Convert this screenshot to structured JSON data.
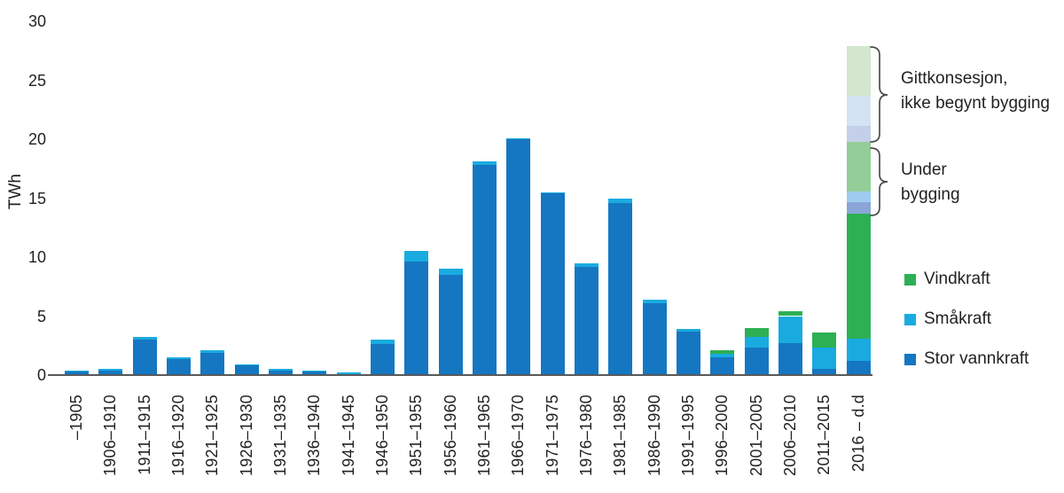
{
  "chart_data": {
    "type": "bar",
    "stacked": true,
    "ylabel": "TWh",
    "ylim": [
      0,
      30
    ],
    "yticks": [
      0,
      5,
      10,
      15,
      20,
      25,
      30
    ],
    "grid": false,
    "legend_position": "right",
    "categories": [
      "–1905",
      "1906–1910",
      "1911–1915",
      "1916–1920",
      "1921–1925",
      "1926–1930",
      "1931–1935",
      "1936–1940",
      "1941–1945",
      "1946–1950",
      "1951–1955",
      "1956–1960",
      "1961–1965",
      "1966–1970",
      "1971–1975",
      "1976–1980",
      "1981–1985",
      "1986–1990",
      "1991–1995",
      "1996–2000",
      "2001–2005",
      "2006–2010",
      "2011–2015",
      "2016 – d.d"
    ],
    "series": [
      {
        "name": "Stor vannkraft",
        "key": "stor",
        "color": "#1577c1",
        "values": [
          0.3,
          0.4,
          3.0,
          1.35,
          1.9,
          0.8,
          0.4,
          0.35,
          0.1,
          2.6,
          9.6,
          8.5,
          17.8,
          20.0,
          15.4,
          9.2,
          14.6,
          6.1,
          3.7,
          1.5,
          2.3,
          2.7,
          0.5,
          1.2
        ]
      },
      {
        "name": "Småkraft",
        "key": "sma",
        "color": "#19abe0",
        "values": [
          0.1,
          0.1,
          0.2,
          0.15,
          0.2,
          0.1,
          0.1,
          0.05,
          0.15,
          0.4,
          0.9,
          0.5,
          0.3,
          0.1,
          0.1,
          0.3,
          0.4,
          0.3,
          0.2,
          0.3,
          0.9,
          2.3,
          1.8,
          1.9
        ]
      },
      {
        "name": "Vindkraft",
        "key": "vind",
        "color": "#2db054",
        "values": [
          0,
          0,
          0,
          0,
          0,
          0,
          0,
          0,
          0,
          0,
          0,
          0,
          0,
          0,
          0,
          0,
          0,
          0,
          0,
          0.3,
          0.8,
          0.4,
          1.3,
          10.6
        ]
      },
      {
        "name": "Under bygging – stor vannkraft",
        "key": "ub_stor",
        "color": "#8aa6d7",
        "values": [
          0,
          0,
          0,
          0,
          0,
          0,
          0,
          0,
          0,
          0,
          0,
          0,
          0,
          0,
          0,
          0,
          0,
          0,
          0,
          0,
          0,
          0,
          0,
          1.0
        ]
      },
      {
        "name": "Under bygging – småkraft",
        "key": "ub_sma",
        "color": "#9fccee",
        "values": [
          0,
          0,
          0,
          0,
          0,
          0,
          0,
          0,
          0,
          0,
          0,
          0,
          0,
          0,
          0,
          0,
          0,
          0,
          0,
          0,
          0,
          0,
          0,
          0.9
        ]
      },
      {
        "name": "Under bygging – vindkraft",
        "key": "ub_vind",
        "color": "#94cd98",
        "values": [
          0,
          0,
          0,
          0,
          0,
          0,
          0,
          0,
          0,
          0,
          0,
          0,
          0,
          0,
          0,
          0,
          0,
          0,
          0,
          0,
          0,
          0,
          0,
          4.2
        ]
      },
      {
        "name": "Gitt konsesjon – stor vannkraft",
        "key": "gk_stor",
        "color": "#c4cfe9",
        "values": [
          0,
          0,
          0,
          0,
          0,
          0,
          0,
          0,
          0,
          0,
          0,
          0,
          0,
          0,
          0,
          0,
          0,
          0,
          0,
          0,
          0,
          0,
          0,
          1.3
        ]
      },
      {
        "name": "Gitt konsesjon – småkraft",
        "key": "gk_sma",
        "color": "#d3e3f4",
        "values": [
          0,
          0,
          0,
          0,
          0,
          0,
          0,
          0,
          0,
          0,
          0,
          0,
          0,
          0,
          0,
          0,
          0,
          0,
          0,
          0,
          0,
          0,
          0,
          2.6
        ]
      },
      {
        "name": "Gitt konsesjon – vindkraft",
        "key": "gk_vind",
        "color": "#d2e7cd",
        "values": [
          0,
          0,
          0,
          0,
          0,
          0,
          0,
          0,
          0,
          0,
          0,
          0,
          0,
          0,
          0,
          0,
          0,
          0,
          0,
          0,
          0,
          0,
          0,
          4.2
        ]
      }
    ],
    "legend": [
      {
        "label": "Vindkraft",
        "color": "#2db054"
      },
      {
        "label": "Småkraft",
        "color": "#19abe0"
      },
      {
        "label": "Stor vannkraft",
        "color": "#1577c1"
      }
    ],
    "annotations": [
      {
        "key": "gitt-konsesjon",
        "lines": [
          "Gittkonsesjon,",
          "ikke begynt bygging"
        ]
      },
      {
        "key": "under-bygging",
        "lines": [
          "Under",
          "bygging"
        ]
      }
    ],
    "colors": {
      "axis_line": "#58595b",
      "text": "#231f20",
      "bracket": "#4d4d4f"
    }
  }
}
